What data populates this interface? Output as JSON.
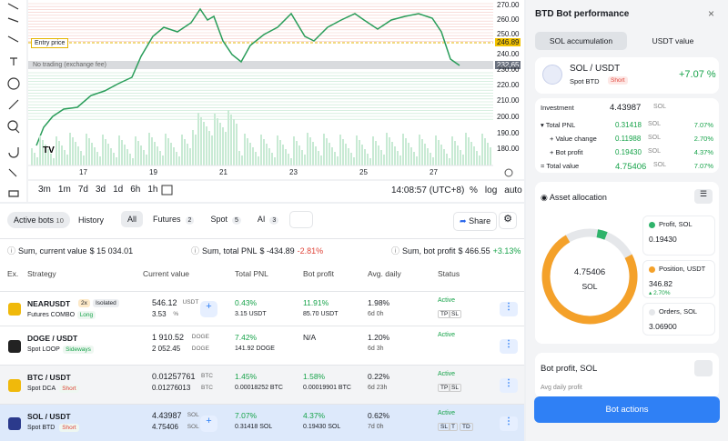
{
  "chart": {
    "price_labels": [
      "270.00",
      "260.00",
      "250.00",
      "246.89",
      "240.00",
      "232.65",
      "230.00",
      "220.00",
      "210.00",
      "200.00",
      "190.00",
      "180.00"
    ],
    "entry_label": "Entry price",
    "no_trading_label": "No trading (exchange fee)",
    "date_labels": [
      "17",
      "19",
      "21",
      "23",
      "25",
      "27"
    ],
    "timeframes": [
      "3m",
      "1m",
      "7d",
      "3d",
      "1d",
      "6h",
      "1h"
    ],
    "clock": "14:08:57 (UTC+8)",
    "scale_options": [
      "%",
      "log",
      "auto"
    ]
  },
  "tabs": {
    "active": "Active bots",
    "active_count": "10",
    "history": "History",
    "filters": [
      {
        "label": "All"
      },
      {
        "label": "Futures",
        "count": "2"
      },
      {
        "label": "Spot",
        "count": "5"
      },
      {
        "label": "AI",
        "count": "3"
      }
    ],
    "share": "Share"
  },
  "summary": [
    {
      "label": "Sum, current value",
      "value": "$ 15 034.01"
    },
    {
      "label": "Sum, total PNL",
      "value": "$ -434.89",
      "change": "-2.81%"
    },
    {
      "label": "Sum, bot profit",
      "value": "$ 466.55",
      "change": "+3.13%"
    }
  ],
  "table": {
    "headers": [
      "Ex.",
      "Strategy",
      "Current value",
      "Total PNL",
      "Bot profit",
      "Avg. daily",
      "Status"
    ],
    "rows": [
      {
        "pair": "NEARUSDT",
        "badges": [
          "2x",
          "Isolated"
        ],
        "strategy": "Futures COMBO",
        "tag": "Long",
        "current": [
          {
            "amount": "546.12",
            "unit": "USDT"
          },
          {
            "amount": "3.53",
            "unit": "%"
          }
        ],
        "pnl": "0.43%",
        "pnl_abs": "3.15 USDT",
        "profit": "11.91%",
        "profit_abs": "85.70 USDT",
        "daily": "1.98%",
        "age": "6d 0h",
        "status": "Active",
        "flags": [
          "TP",
          "SL"
        ]
      },
      {
        "pair": "DOGE / USDT",
        "badges": [],
        "strategy": "Spot LOOP",
        "tag": "Sideways",
        "current": [
          {
            "amount": "1 910.52",
            "unit": "DOGE"
          },
          {
            "amount": "2 052.45",
            "unit": "DOGE"
          }
        ],
        "pnl": "7.42%",
        "pnl_abs": "141.92 DOGE",
        "profit": "N/A",
        "daily": "1.20%",
        "age": "6d 3h",
        "status": "Active",
        "flags": []
      },
      {
        "pair": "BTC / USDT",
        "badges": [],
        "strategy": "Spot DCA",
        "tag": "Short",
        "current": [
          {
            "amount": "0.01257761",
            "unit": "BTC"
          },
          {
            "amount": "0.01276013",
            "unit": "BTC"
          }
        ],
        "pnl": "1.45%",
        "pnl_abs": "0.00018252 BTC",
        "profit": "1.58%",
        "profit_abs": "0.00019901 BTC",
        "daily": "0.22%",
        "age": "6d 23h",
        "status": "Active",
        "flags": [
          "TP",
          "SL"
        ]
      },
      {
        "pair": "SOL / USDT",
        "badges": [],
        "strategy": "Spot BTD",
        "tag": "Short",
        "current": [
          {
            "amount": "4.43987",
            "unit": "SOL"
          },
          {
            "amount": "4.75406",
            "unit": "SOL"
          }
        ],
        "pnl": "7.07%",
        "pnl_abs": "0.31418 SOL",
        "profit": "4.37%",
        "profit_abs": "0.19430 SOL",
        "daily": "0.62%",
        "age": "7d 0h",
        "status": "Active",
        "flags": [
          "SL",
          "T",
          "TD"
        ]
      }
    ]
  },
  "panel": {
    "title": "BTD Bot performance",
    "tabs": [
      "SOL accumulation",
      "USDT value"
    ],
    "pair": "SOL / USDT",
    "strategy": "Spot BTD",
    "tag": "Short",
    "change": "+7.07 %",
    "metrics": [
      {
        "label": "Investment",
        "value": "4.43987",
        "unit": "SOL"
      },
      {
        "label": "Total PNL",
        "value": "0.31418",
        "unit": "SOL",
        "pct": "7.07%"
      },
      {
        "label": "Value change",
        "value": "0.11988",
        "unit": "SOL",
        "pct": "2.70%"
      },
      {
        "label": "Bot profit",
        "value": "0.19430",
        "unit": "SOL",
        "pct": "4.37%"
      },
      {
        "label": "Total value",
        "value": "4.75406",
        "unit": "SOL",
        "pct": "7.07%"
      }
    ],
    "allocation_title": "Asset allocation",
    "donut_value": "4.75406",
    "donut_unit": "SOL",
    "legend": [
      {
        "label": "Profit, SOL",
        "value": "0.19430"
      },
      {
        "label": "Position, USDT",
        "value": "346.82",
        "change": "2.70%"
      },
      {
        "label": "Orders, SOL",
        "value": "3.06900"
      }
    ],
    "profit_title": "Bot profit, SOL",
    "profit_sub": "Avg daily profit",
    "button": "Bot actions"
  }
}
